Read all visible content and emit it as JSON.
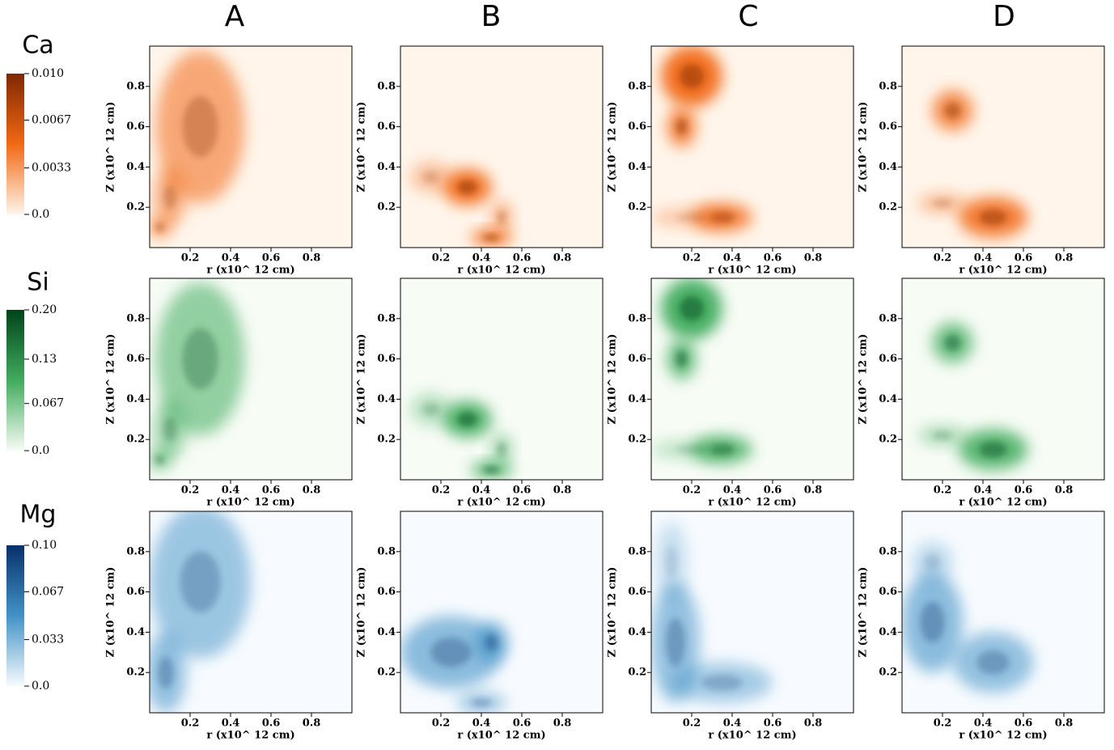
{
  "chart_data": {
    "type": "heatmap-grid",
    "columns": [
      "A",
      "B",
      "C",
      "D"
    ],
    "xlabel": "r (x10^ 12 cm)",
    "ylabel": "Z (x10^ 12 cm)",
    "xlim": [
      0,
      1
    ],
    "ylim": [
      0,
      1
    ],
    "xticks": [
      0.2,
      0.4,
      0.6,
      0.8
    ],
    "yticks": [
      0.2,
      0.4,
      0.6,
      0.8
    ],
    "rows": [
      {
        "name": "Ca",
        "colors": [
          "#fff5eb",
          "#f16913",
          "#7f2704"
        ],
        "clim": [
          0,
          0.01
        ],
        "cticks": [
          {
            "value": 0.01,
            "label": "0.010"
          },
          0.0067,
          0.0033,
          {
            "value": 0,
            "label": "0.0"
          }
        ]
      },
      {
        "name": "Si",
        "colors": [
          "#f7fcf5",
          "#41ab5d",
          "#00441b"
        ],
        "clim": [
          0,
          0.2
        ],
        "cticks": [
          {
            "value": 0.2,
            "label": "0.20"
          },
          0.13,
          0.067,
          {
            "value": 0,
            "label": "0.0"
          }
        ]
      },
      {
        "name": "Mg",
        "colors": [
          "#f7fbff",
          "#4292c6",
          "#08306b"
        ],
        "clim": [
          0,
          0.1
        ],
        "cticks": [
          {
            "value": 0.1,
            "label": "0.10"
          },
          0.067,
          0.033,
          {
            "value": 0,
            "label": "0.0"
          }
        ]
      }
    ]
  }
}
